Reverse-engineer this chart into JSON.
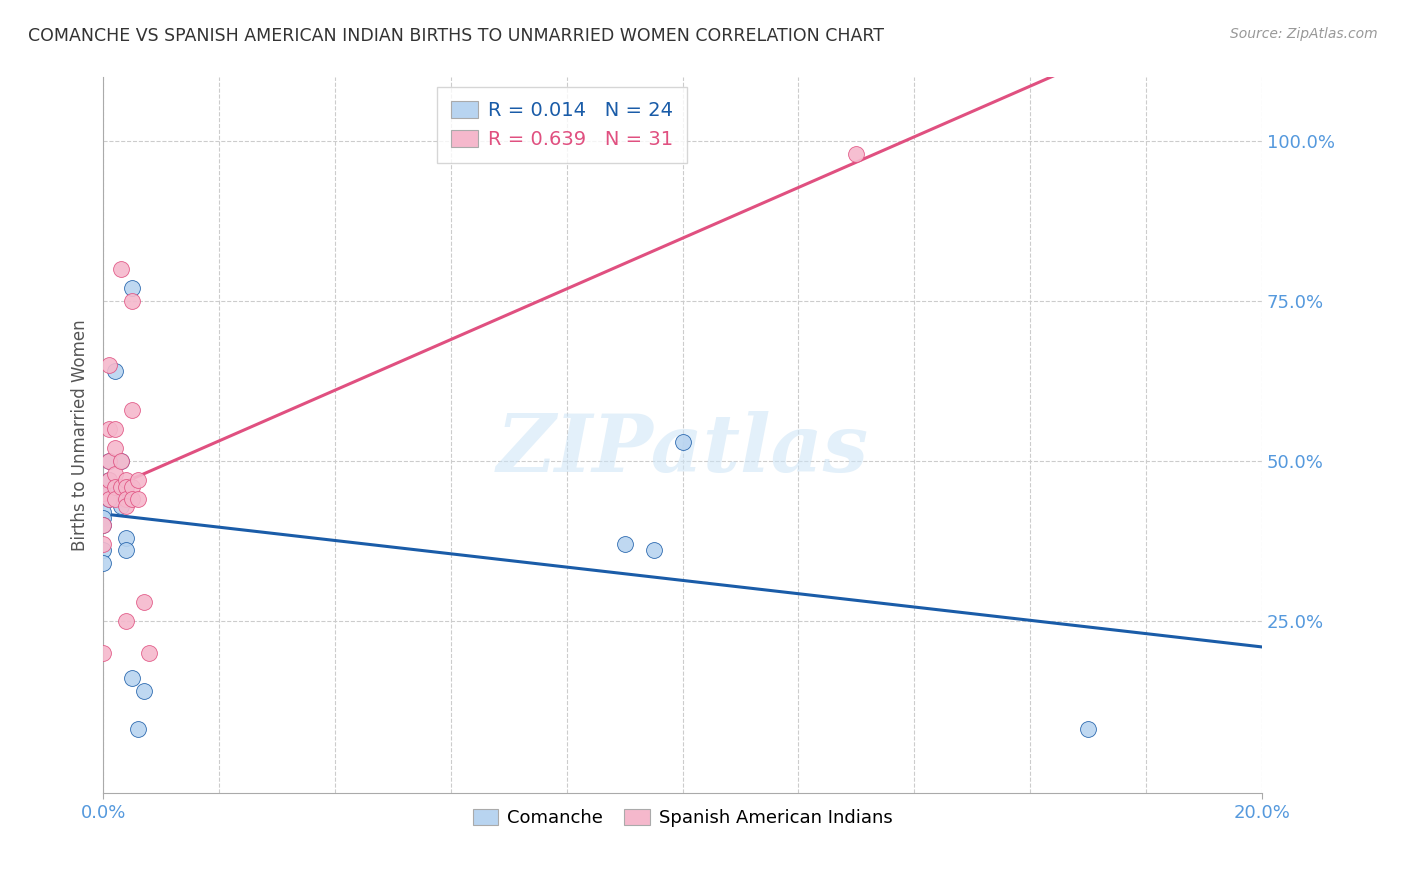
{
  "title": "COMANCHE VS SPANISH AMERICAN INDIAN BIRTHS TO UNMARRIED WOMEN CORRELATION CHART",
  "source": "Source: ZipAtlas.com",
  "ylabel": "Births to Unmarried Women",
  "ytick_labels": [
    "25.0%",
    "50.0%",
    "75.0%",
    "100.0%"
  ],
  "ytick_values": [
    0.25,
    0.5,
    0.75,
    1.0
  ],
  "comanche_color": "#b8d4f0",
  "spanish_color": "#f5b8cc",
  "comanche_line_color": "#1a5ca8",
  "spanish_line_color": "#e05080",
  "watermark": "ZIPatlas",
  "comanche_x": [
    0.0,
    0.0,
    0.0,
    0.0,
    0.0,
    0.001,
    0.001,
    0.001,
    0.001,
    0.002,
    0.002,
    0.003,
    0.003,
    0.003,
    0.004,
    0.004,
    0.005,
    0.005,
    0.006,
    0.007,
    0.09,
    0.095,
    0.1,
    0.17
  ],
  "comanche_y": [
    0.42,
    0.41,
    0.4,
    0.36,
    0.34,
    0.5,
    0.47,
    0.45,
    0.44,
    0.64,
    0.46,
    0.5,
    0.44,
    0.43,
    0.38,
    0.36,
    0.77,
    0.16,
    0.08,
    0.14,
    0.37,
    0.36,
    0.53,
    0.08
  ],
  "spanish_x": [
    0.0,
    0.0,
    0.0,
    0.0,
    0.001,
    0.001,
    0.001,
    0.001,
    0.001,
    0.002,
    0.002,
    0.002,
    0.002,
    0.002,
    0.003,
    0.003,
    0.003,
    0.004,
    0.004,
    0.004,
    0.004,
    0.004,
    0.005,
    0.005,
    0.005,
    0.005,
    0.006,
    0.006,
    0.007,
    0.008,
    0.13
  ],
  "spanish_y": [
    0.45,
    0.4,
    0.37,
    0.2,
    0.65,
    0.55,
    0.5,
    0.47,
    0.44,
    0.55,
    0.52,
    0.48,
    0.46,
    0.44,
    0.8,
    0.5,
    0.46,
    0.47,
    0.46,
    0.44,
    0.43,
    0.25,
    0.75,
    0.58,
    0.46,
    0.44,
    0.47,
    0.44,
    0.28,
    0.2,
    0.98
  ],
  "xlim": [
    0.0,
    0.2
  ],
  "ylim": [
    -0.02,
    1.1
  ],
  "figsize": [
    14.06,
    8.92
  ],
  "dpi": 100
}
